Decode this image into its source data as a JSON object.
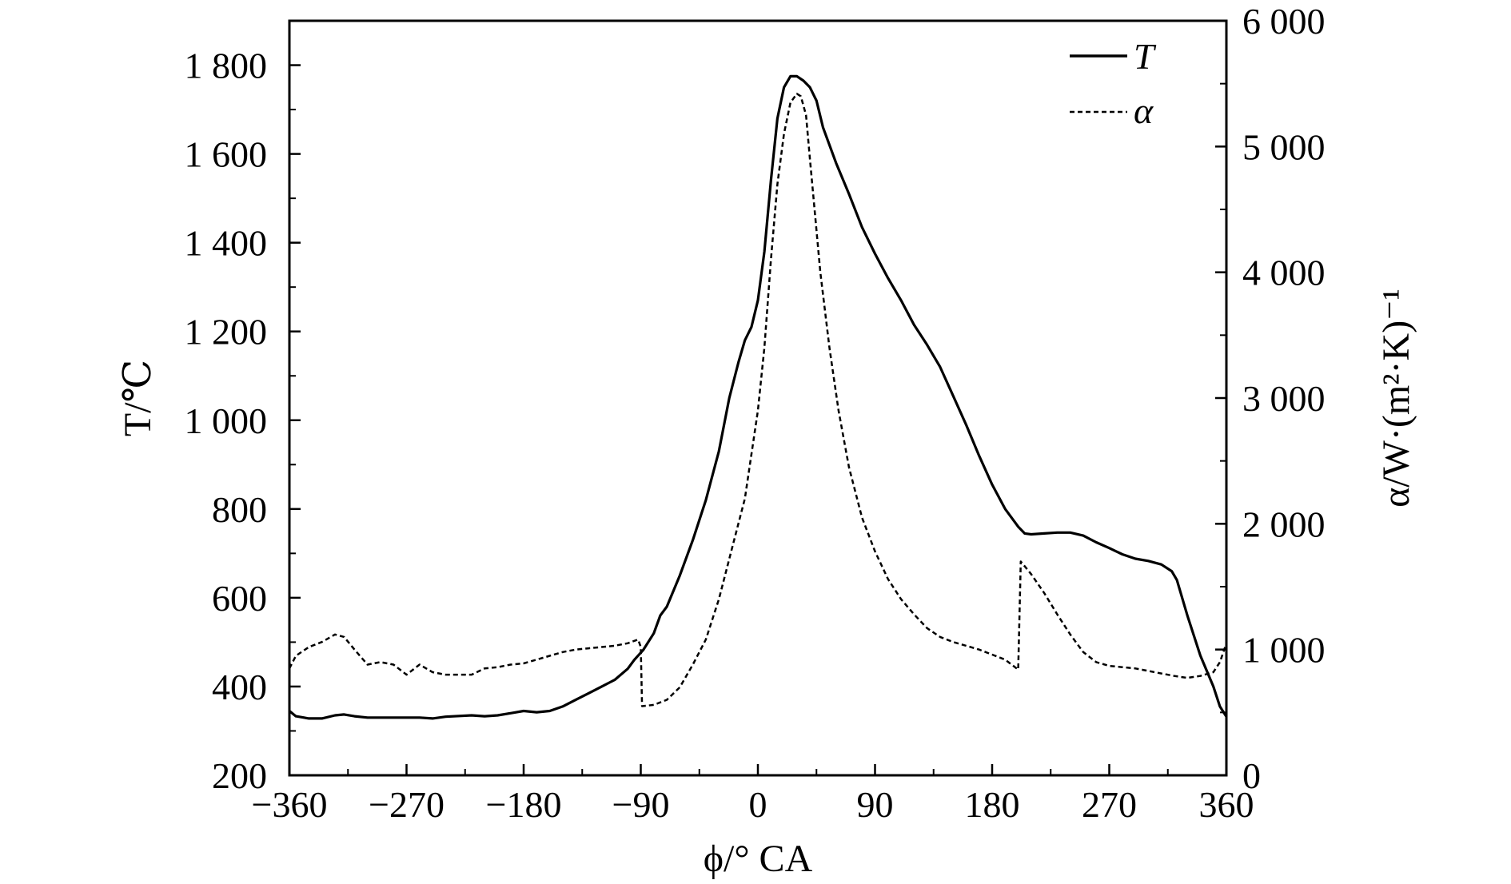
{
  "chart_data": {
    "type": "line",
    "xlabel": "ϕ/° CA",
    "ylabel_left": "T/℃",
    "ylabel_right": "α/W·(m²·K)⁻¹",
    "xlim": [
      -360,
      360
    ],
    "ylim_left": [
      200,
      1900
    ],
    "ylim_right": [
      0,
      6000
    ],
    "x_ticks": [
      -360,
      -270,
      -180,
      -90,
      0,
      90,
      180,
      270,
      360
    ],
    "x_tick_labels": [
      "−360",
      "−270",
      "−180",
      "−90",
      "0",
      "90",
      "180",
      "270",
      "360"
    ],
    "y_left_ticks": [
      200,
      400,
      600,
      800,
      1000,
      1200,
      1400,
      1600,
      1800
    ],
    "y_left_tick_labels": [
      "200",
      "400",
      "600",
      "800",
      "1 000",
      "1 200",
      "1 400",
      "1 600",
      "1 800"
    ],
    "y_right_ticks": [
      0,
      1000,
      2000,
      3000,
      4000,
      5000,
      6000
    ],
    "y_right_tick_labels": [
      "0",
      "1 000",
      "2 000",
      "3 000",
      "4 000",
      "5 000",
      "6 000"
    ],
    "grid": false,
    "legend_position": "top-right",
    "series": [
      {
        "name": "T",
        "axis": "left",
        "style": "solid",
        "color": "#000000",
        "points": [
          [
            -360,
            345
          ],
          [
            -355,
            333
          ],
          [
            -345,
            328
          ],
          [
            -335,
            328
          ],
          [
            -325,
            335
          ],
          [
            -318,
            337
          ],
          [
            -310,
            333
          ],
          [
            -300,
            330
          ],
          [
            -280,
            330
          ],
          [
            -260,
            330
          ],
          [
            -250,
            328
          ],
          [
            -240,
            332
          ],
          [
            -220,
            335
          ],
          [
            -210,
            333
          ],
          [
            -200,
            335
          ],
          [
            -190,
            340
          ],
          [
            -180,
            345
          ],
          [
            -170,
            342
          ],
          [
            -160,
            345
          ],
          [
            -150,
            355
          ],
          [
            -140,
            370
          ],
          [
            -130,
            385
          ],
          [
            -120,
            400
          ],
          [
            -110,
            415
          ],
          [
            -100,
            440
          ],
          [
            -95,
            460
          ],
          [
            -88,
            483
          ],
          [
            -80,
            520
          ],
          [
            -75,
            560
          ],
          [
            -70,
            580
          ],
          [
            -60,
            650
          ],
          [
            -50,
            730
          ],
          [
            -40,
            820
          ],
          [
            -30,
            930
          ],
          [
            -22,
            1050
          ],
          [
            -15,
            1130
          ],
          [
            -10,
            1180
          ],
          [
            -5,
            1210
          ],
          [
            0,
            1270
          ],
          [
            5,
            1380
          ],
          [
            10,
            1540
          ],
          [
            15,
            1680
          ],
          [
            20,
            1750
          ],
          [
            25,
            1775
          ],
          [
            30,
            1775
          ],
          [
            35,
            1765
          ],
          [
            40,
            1750
          ],
          [
            45,
            1720
          ],
          [
            50,
            1660
          ],
          [
            60,
            1580
          ],
          [
            70,
            1510
          ],
          [
            80,
            1435
          ],
          [
            90,
            1375
          ],
          [
            100,
            1320
          ],
          [
            110,
            1270
          ],
          [
            120,
            1215
          ],
          [
            130,
            1170
          ],
          [
            140,
            1120
          ],
          [
            150,
            1055
          ],
          [
            160,
            990
          ],
          [
            170,
            920
          ],
          [
            180,
            855
          ],
          [
            190,
            800
          ],
          [
            200,
            760
          ],
          [
            205,
            745
          ],
          [
            210,
            743
          ],
          [
            220,
            745
          ],
          [
            230,
            747
          ],
          [
            240,
            747
          ],
          [
            250,
            740
          ],
          [
            260,
            725
          ],
          [
            270,
            712
          ],
          [
            280,
            698
          ],
          [
            290,
            688
          ],
          [
            300,
            683
          ],
          [
            310,
            675
          ],
          [
            318,
            660
          ],
          [
            322,
            640
          ],
          [
            330,
            560
          ],
          [
            340,
            470
          ],
          [
            350,
            400
          ],
          [
            355,
            355
          ],
          [
            360,
            332
          ]
        ]
      },
      {
        "name": "α",
        "axis": "right",
        "style": "dashed",
        "color": "#000000",
        "points": [
          [
            -360,
            850
          ],
          [
            -355,
            950
          ],
          [
            -345,
            1020
          ],
          [
            -335,
            1060
          ],
          [
            -325,
            1120
          ],
          [
            -318,
            1100
          ],
          [
            -310,
            1000
          ],
          [
            -300,
            880
          ],
          [
            -290,
            900
          ],
          [
            -280,
            880
          ],
          [
            -270,
            800
          ],
          [
            -260,
            880
          ],
          [
            -250,
            820
          ],
          [
            -240,
            800
          ],
          [
            -220,
            800
          ],
          [
            -210,
            850
          ],
          [
            -200,
            860
          ],
          [
            -190,
            880
          ],
          [
            -180,
            890
          ],
          [
            -170,
            920
          ],
          [
            -160,
            950
          ],
          [
            -150,
            980
          ],
          [
            -140,
            1000
          ],
          [
            -130,
            1010
          ],
          [
            -120,
            1020
          ],
          [
            -110,
            1030
          ],
          [
            -100,
            1050
          ],
          [
            -92,
            1080
          ],
          [
            -90,
            1020
          ],
          [
            -89,
            550
          ],
          [
            -80,
            560
          ],
          [
            -70,
            600
          ],
          [
            -60,
            700
          ],
          [
            -50,
            880
          ],
          [
            -40,
            1080
          ],
          [
            -30,
            1400
          ],
          [
            -20,
            1800
          ],
          [
            -10,
            2200
          ],
          [
            0,
            2900
          ],
          [
            5,
            3400
          ],
          [
            10,
            4100
          ],
          [
            15,
            4700
          ],
          [
            20,
            5100
          ],
          [
            25,
            5350
          ],
          [
            30,
            5420
          ],
          [
            33,
            5400
          ],
          [
            37,
            5250
          ],
          [
            40,
            4900
          ],
          [
            44,
            4450
          ],
          [
            48,
            4000
          ],
          [
            55,
            3400
          ],
          [
            62,
            2900
          ],
          [
            70,
            2450
          ],
          [
            80,
            2050
          ],
          [
            90,
            1780
          ],
          [
            100,
            1560
          ],
          [
            110,
            1400
          ],
          [
            120,
            1280
          ],
          [
            130,
            1170
          ],
          [
            140,
            1100
          ],
          [
            150,
            1060
          ],
          [
            160,
            1030
          ],
          [
            170,
            1000
          ],
          [
            180,
            960
          ],
          [
            190,
            920
          ],
          [
            200,
            840
          ],
          [
            202,
            1700
          ],
          [
            210,
            1600
          ],
          [
            220,
            1450
          ],
          [
            230,
            1280
          ],
          [
            240,
            1120
          ],
          [
            250,
            980
          ],
          [
            260,
            900
          ],
          [
            270,
            870
          ],
          [
            280,
            860
          ],
          [
            290,
            850
          ],
          [
            300,
            830
          ],
          [
            310,
            810
          ],
          [
            320,
            790
          ],
          [
            330,
            775
          ],
          [
            340,
            790
          ],
          [
            350,
            820
          ],
          [
            355,
            900
          ],
          [
            360,
            1050
          ]
        ]
      }
    ]
  }
}
